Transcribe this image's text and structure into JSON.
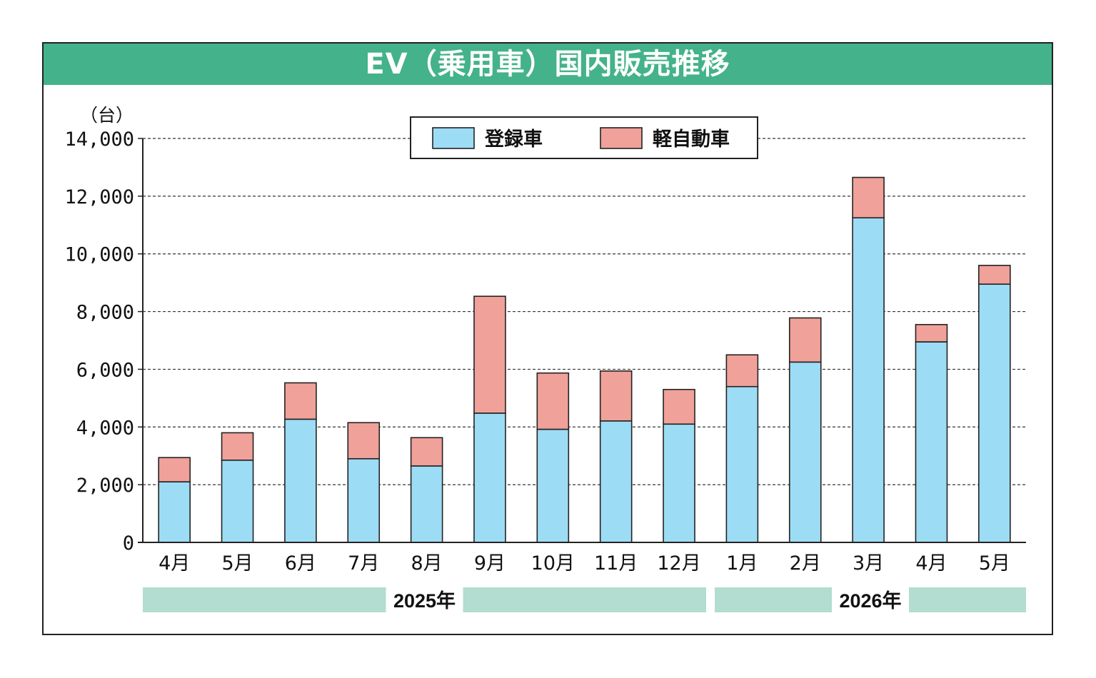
{
  "chart_data": {
    "type": "bar",
    "stacked": true,
    "title": "EV（乗用車）国内販売推移",
    "ylabel": "（台）",
    "ylim": [
      0,
      14000
    ],
    "yticks": [
      0,
      2000,
      4000,
      6000,
      8000,
      10000,
      12000,
      14000
    ],
    "ytick_labels": [
      "0",
      "2,000",
      "4,000",
      "6,000",
      "8,000",
      "10,000",
      "12,000",
      "14,000"
    ],
    "grid": true,
    "legend_position": "top-center",
    "categories": [
      "4月",
      "5月",
      "6月",
      "7月",
      "8月",
      "9月",
      "10月",
      "11月",
      "12月",
      "1月",
      "2月",
      "3月",
      "4月",
      "5月"
    ],
    "series": [
      {
        "name": "登録車",
        "color": "#9ddcf5",
        "values": [
          2100,
          2850,
          4270,
          2900,
          2650,
          4480,
          3920,
          4210,
          4100,
          5400,
          6250,
          11250,
          6950,
          8950
        ]
      },
      {
        "name": "軽自動車",
        "color": "#f0a19a",
        "values": [
          840,
          950,
          1260,
          1250,
          980,
          4050,
          1950,
          1730,
          1200,
          1100,
          1530,
          1400,
          600,
          650
        ]
      }
    ],
    "year_groups": [
      {
        "label": "2025年",
        "start": 0,
        "end": 8
      },
      {
        "label": "2026年",
        "start": 9,
        "end": 13
      }
    ]
  },
  "colors": {
    "title_bg": "#44b28a",
    "year_band": "#b2ddd0",
    "bar_outline": "#222222"
  }
}
